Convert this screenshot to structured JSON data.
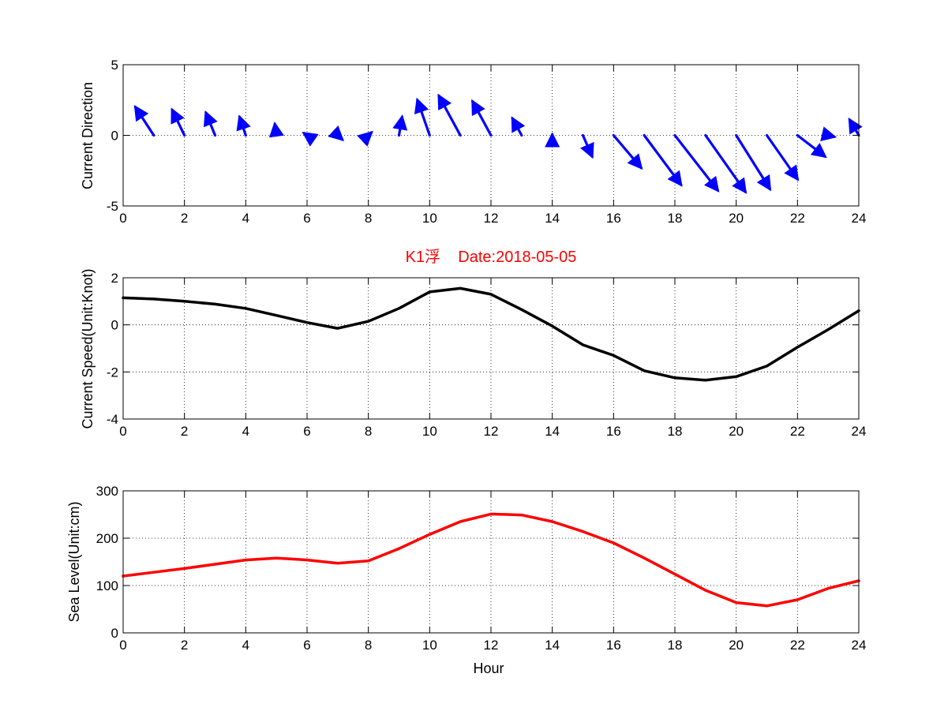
{
  "chart_data": [
    {
      "type": "quiver",
      "title": "",
      "xlabel": "",
      "ylabel": "Current Direction",
      "xlim": [
        0,
        24
      ],
      "ylim": [
        -5,
        5
      ],
      "xticks": [
        0,
        2,
        4,
        6,
        8,
        10,
        12,
        14,
        16,
        18,
        20,
        22,
        24
      ],
      "yticks": [
        -5,
        0,
        5
      ],
      "grid": true,
      "color": "#0000ff",
      "arrows": [
        {
          "x": 1,
          "u": -0.6,
          "v": 2.0
        },
        {
          "x": 2,
          "u": -0.4,
          "v": 1.8
        },
        {
          "x": 3,
          "u": -0.3,
          "v": 1.6
        },
        {
          "x": 4,
          "u": -0.2,
          "v": 1.3
        },
        {
          "x": 5,
          "u": -0.05,
          "v": 0.8
        },
        {
          "x": 6,
          "u": -0.1,
          "v": 0.15
        },
        {
          "x": 7,
          "u": 0.15,
          "v": -0.3
        },
        {
          "x": 8,
          "u": 0.1,
          "v": 0.2
        },
        {
          "x": 9,
          "u": 0.1,
          "v": 1.3
        },
        {
          "x": 10,
          "u": -0.4,
          "v": 2.5
        },
        {
          "x": 11,
          "u": -0.7,
          "v": 2.8
        },
        {
          "x": 12,
          "u": -0.6,
          "v": 2.4
        },
        {
          "x": 13,
          "u": -0.3,
          "v": 1.2
        },
        {
          "x": 14,
          "u": 0.0,
          "v": 0.05
        },
        {
          "x": 15,
          "u": 0.3,
          "v": -1.5
        },
        {
          "x": 16,
          "u": 0.9,
          "v": -2.3
        },
        {
          "x": 17,
          "u": 1.2,
          "v": -3.5
        },
        {
          "x": 18,
          "u": 1.4,
          "v": -3.9
        },
        {
          "x": 19,
          "u": 1.3,
          "v": -4.0
        },
        {
          "x": 20,
          "u": 1.1,
          "v": -3.8
        },
        {
          "x": 21,
          "u": 1.0,
          "v": -3.1
        },
        {
          "x": 22,
          "u": 0.9,
          "v": -1.5
        },
        {
          "x": 23,
          "u": 0.2,
          "v": -0.1
        },
        {
          "x": 24,
          "u": -0.3,
          "v": 1.1
        }
      ]
    },
    {
      "type": "line",
      "title": "K1浮    Date:2018-05-05",
      "xlabel": "",
      "ylabel": "Current Speed(Unit:Knot)",
      "xlim": [
        0,
        24
      ],
      "ylim": [
        -4,
        2
      ],
      "xticks": [
        0,
        2,
        4,
        6,
        8,
        10,
        12,
        14,
        16,
        18,
        20,
        22,
        24
      ],
      "yticks": [
        -4,
        -2,
        0,
        2
      ],
      "grid": true,
      "series": [
        {
          "color": "#000000",
          "x": [
            0,
            1,
            2,
            3,
            4,
            5,
            6,
            7,
            8,
            9,
            10,
            11,
            12,
            13,
            14,
            15,
            16,
            17,
            18,
            19,
            20,
            21,
            22,
            23,
            24
          ],
          "values": [
            1.15,
            1.1,
            1.0,
            0.88,
            0.7,
            0.4,
            0.1,
            -0.15,
            0.15,
            0.7,
            1.4,
            1.55,
            1.3,
            0.65,
            -0.05,
            -0.85,
            -1.3,
            -1.95,
            -2.25,
            -2.35,
            -2.2,
            -1.75,
            -0.95,
            -0.2,
            0.6
          ]
        }
      ]
    },
    {
      "type": "line",
      "title": "",
      "xlabel": "Hour",
      "ylabel": "Sea Level(Unit:cm)",
      "xlim": [
        0,
        24
      ],
      "ylim": [
        0,
        300
      ],
      "xticks": [
        0,
        2,
        4,
        6,
        8,
        10,
        12,
        14,
        16,
        18,
        20,
        22,
        24
      ],
      "yticks": [
        0,
        100,
        200,
        300
      ],
      "grid": true,
      "series": [
        {
          "color": "#ff0000",
          "x": [
            0,
            1,
            2,
            3,
            4,
            5,
            6,
            7,
            8,
            9,
            10,
            11,
            12,
            13,
            14,
            15,
            16,
            17,
            18,
            19,
            20,
            21,
            22,
            23,
            24
          ],
          "values": [
            120,
            128,
            136,
            145,
            154,
            158,
            154,
            147,
            152,
            178,
            208,
            235,
            251,
            249,
            235,
            214,
            190,
            158,
            124,
            90,
            64,
            57,
            70,
            94,
            110
          ]
        }
      ]
    }
  ]
}
